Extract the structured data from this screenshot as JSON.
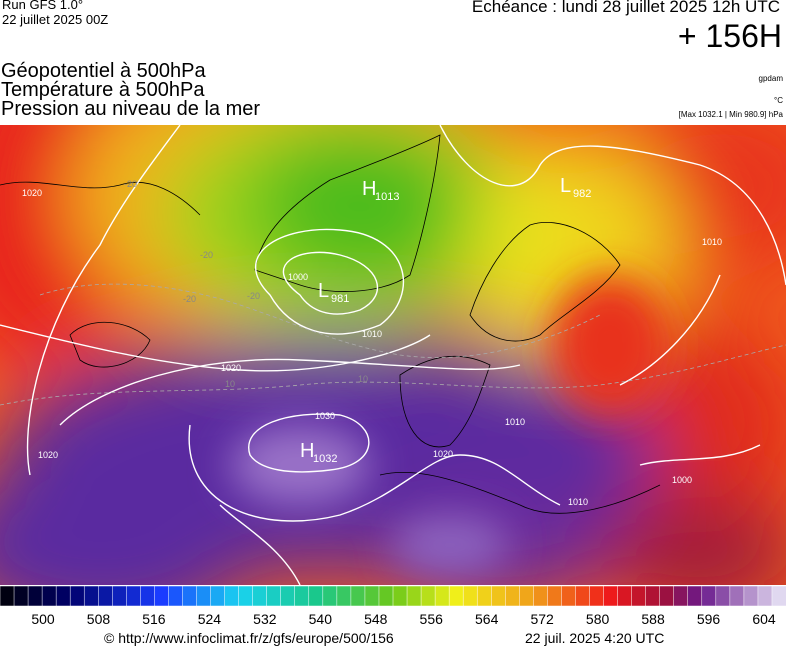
{
  "header": {
    "run": "Run GFS 1.0°",
    "date": "22 juillet 2025 00Z",
    "echeance": "Echéance : lundi 28 juillet 2025 12h UTC",
    "lead": "+ 156H",
    "fields": [
      "Géopotentiel à 500hPa",
      "Température à 500hPa",
      "Pression au niveau de la mer"
    ],
    "units": [
      "gpdam",
      "°C",
      "[Max 1032.1 | Min 980.9] hPa"
    ]
  },
  "map": {
    "centers": [
      {
        "letter": "H",
        "value": "1013"
      },
      {
        "letter": "L",
        "value": "981"
      },
      {
        "letter": "L",
        "value": "982"
      },
      {
        "letter": "H",
        "value": "1032"
      }
    ],
    "contour_labels": [
      "1020",
      "1020",
      "1030",
      "1020",
      "1010",
      "1010",
      "1010",
      "1000",
      "1020",
      "1010",
      "1000",
      "-20",
      "-20",
      "-20",
      "10",
      "10",
      "-20"
    ]
  },
  "legend": {
    "ticks": [
      500,
      508,
      516,
      524,
      532,
      540,
      548,
      556,
      564,
      572,
      580,
      588,
      596,
      604
    ]
  },
  "footer": {
    "url": "© http://www.infoclimat.fr/z/gfs/europe/500/156",
    "generated": "22 juil. 2025  4:20 UTC"
  }
}
